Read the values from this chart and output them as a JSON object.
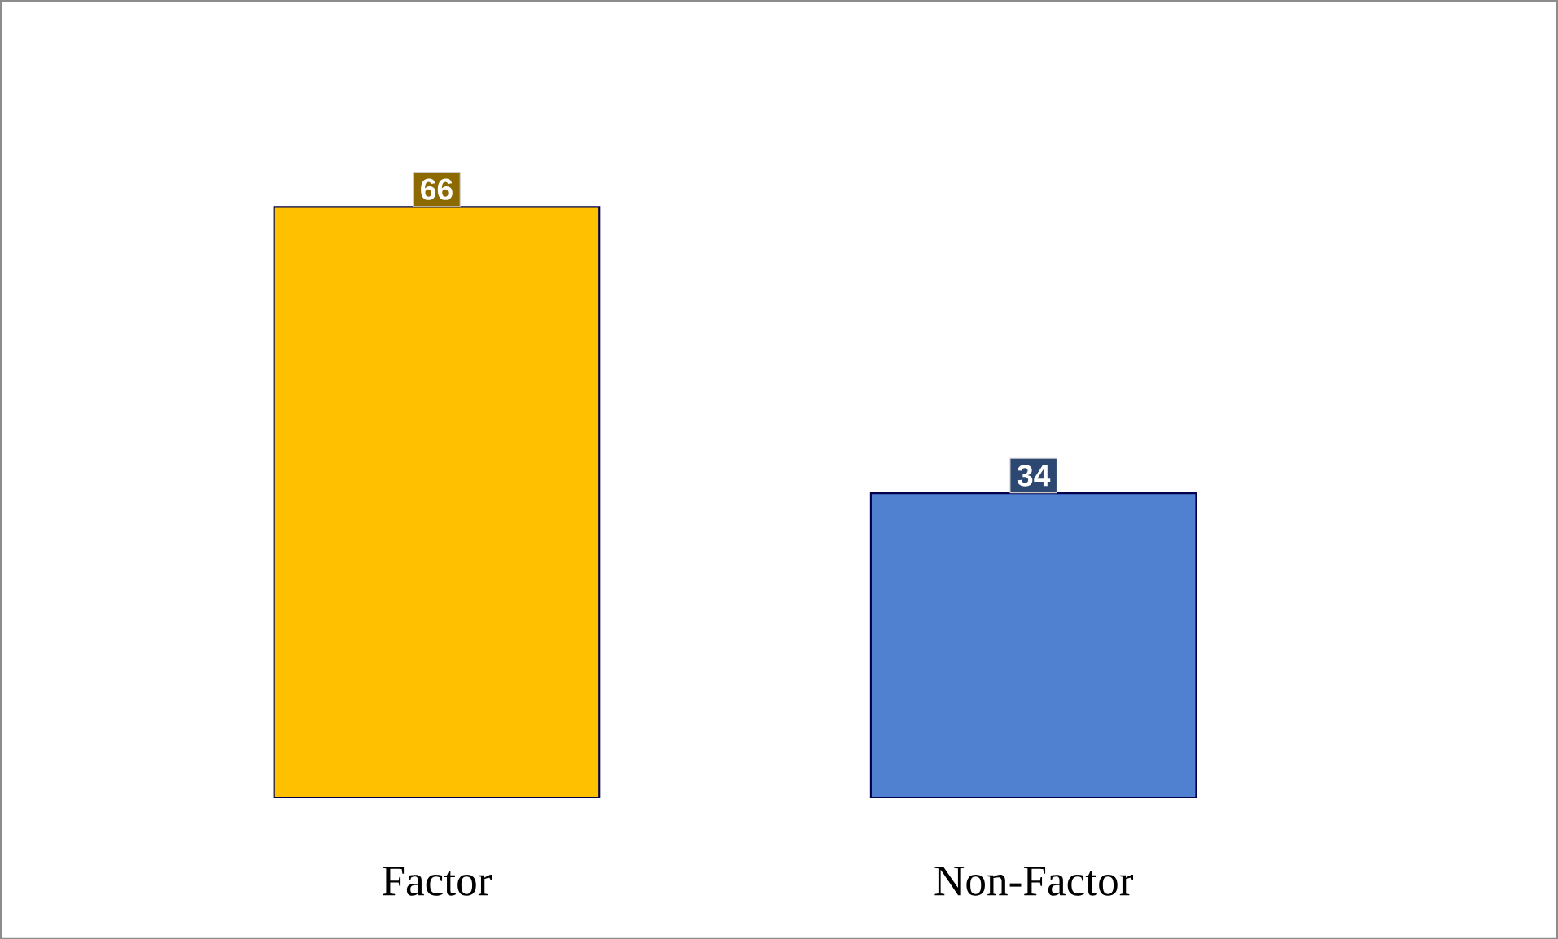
{
  "chart_data": {
    "type": "bar",
    "categories": [
      "Factor",
      "Non-Factor"
    ],
    "values": [
      66,
      34
    ],
    "colors": [
      "#ffc000",
      "#4f81d0"
    ],
    "data_labels": true
  }
}
